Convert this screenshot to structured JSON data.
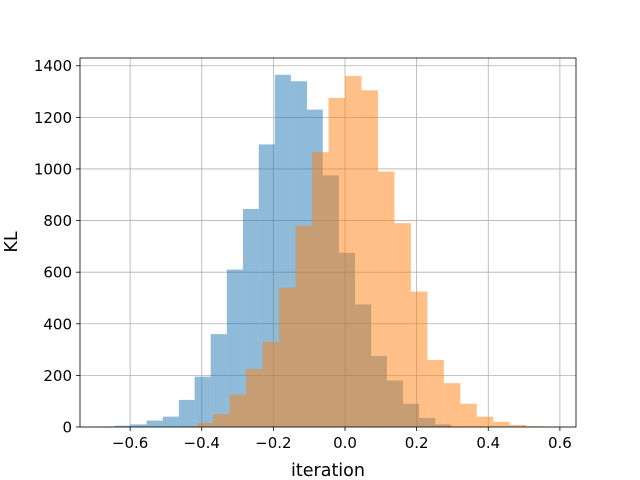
{
  "chart_data": {
    "type": "bar",
    "subtype": "overlapping-histogram",
    "title": "",
    "xlabel": "iteration",
    "ylabel": "KL",
    "xlim": [
      -0.74,
      0.645
    ],
    "ylim": [
      0,
      1430
    ],
    "xticks": [
      -0.6,
      -0.4,
      -0.2,
      0.0,
      0.2,
      0.4,
      0.6
    ],
    "xtick_labels": [
      "−0.6",
      "−0.4",
      "−0.2",
      "0.0",
      "0.2",
      "0.4",
      "0.6"
    ],
    "yticks": [
      0,
      200,
      400,
      600,
      800,
      1000,
      1200,
      1400
    ],
    "ytick_labels": [
      "0",
      "200",
      "400",
      "600",
      "800",
      "1000",
      "1200",
      "1400"
    ],
    "grid": true,
    "legend": "none",
    "series": [
      {
        "color": "#1f77b4",
        "opacity": 0.5,
        "bins": [
          {
            "x0": -0.688,
            "x1": -0.643,
            "count": 2
          },
          {
            "x0": -0.643,
            "x1": -0.599,
            "count": 5
          },
          {
            "x0": -0.599,
            "x1": -0.554,
            "count": 10
          },
          {
            "x0": -0.554,
            "x1": -0.509,
            "count": 25
          },
          {
            "x0": -0.509,
            "x1": -0.464,
            "count": 40
          },
          {
            "x0": -0.464,
            "x1": -0.42,
            "count": 105
          },
          {
            "x0": -0.42,
            "x1": -0.375,
            "count": 195
          },
          {
            "x0": -0.375,
            "x1": -0.33,
            "count": 360
          },
          {
            "x0": -0.33,
            "x1": -0.285,
            "count": 610
          },
          {
            "x0": -0.285,
            "x1": -0.241,
            "count": 845
          },
          {
            "x0": -0.241,
            "x1": -0.196,
            "count": 1095
          },
          {
            "x0": -0.196,
            "x1": -0.151,
            "count": 1365
          },
          {
            "x0": -0.151,
            "x1": -0.106,
            "count": 1340
          },
          {
            "x0": -0.106,
            "x1": -0.062,
            "count": 1230
          },
          {
            "x0": -0.062,
            "x1": -0.017,
            "count": 975
          },
          {
            "x0": -0.017,
            "x1": 0.028,
            "count": 675
          },
          {
            "x0": 0.028,
            "x1": 0.073,
            "count": 475
          },
          {
            "x0": 0.073,
            "x1": 0.117,
            "count": 275
          },
          {
            "x0": 0.117,
            "x1": 0.162,
            "count": 180
          },
          {
            "x0": 0.162,
            "x1": 0.207,
            "count": 90
          },
          {
            "x0": 0.207,
            "x1": 0.252,
            "count": 35
          },
          {
            "x0": 0.252,
            "x1": 0.296,
            "count": 10
          }
        ]
      },
      {
        "color": "#ff7f0e",
        "opacity": 0.5,
        "bins": [
          {
            "x0": -0.46,
            "x1": -0.414,
            "count": 3
          },
          {
            "x0": -0.414,
            "x1": -0.368,
            "count": 15
          },
          {
            "x0": -0.368,
            "x1": -0.322,
            "count": 50
          },
          {
            "x0": -0.322,
            "x1": -0.276,
            "count": 125
          },
          {
            "x0": -0.276,
            "x1": -0.23,
            "count": 225
          },
          {
            "x0": -0.23,
            "x1": -0.184,
            "count": 330
          },
          {
            "x0": -0.184,
            "x1": -0.138,
            "count": 540
          },
          {
            "x0": -0.138,
            "x1": -0.092,
            "count": 780
          },
          {
            "x0": -0.092,
            "x1": -0.046,
            "count": 1065
          },
          {
            "x0": -0.046,
            "x1": 0.0,
            "count": 1275
          },
          {
            "x0": 0.0,
            "x1": 0.046,
            "count": 1360
          },
          {
            "x0": 0.046,
            "x1": 0.092,
            "count": 1305
          },
          {
            "x0": 0.092,
            "x1": 0.138,
            "count": 990
          },
          {
            "x0": 0.138,
            "x1": 0.184,
            "count": 790
          },
          {
            "x0": 0.184,
            "x1": 0.23,
            "count": 525
          },
          {
            "x0": 0.23,
            "x1": 0.276,
            "count": 260
          },
          {
            "x0": 0.276,
            "x1": 0.322,
            "count": 170
          },
          {
            "x0": 0.322,
            "x1": 0.368,
            "count": 90
          },
          {
            "x0": 0.368,
            "x1": 0.414,
            "count": 40
          },
          {
            "x0": 0.414,
            "x1": 0.46,
            "count": 20
          },
          {
            "x0": 0.46,
            "x1": 0.506,
            "count": 8
          },
          {
            "x0": 0.506,
            "x1": 0.552,
            "count": 3
          }
        ]
      }
    ]
  }
}
